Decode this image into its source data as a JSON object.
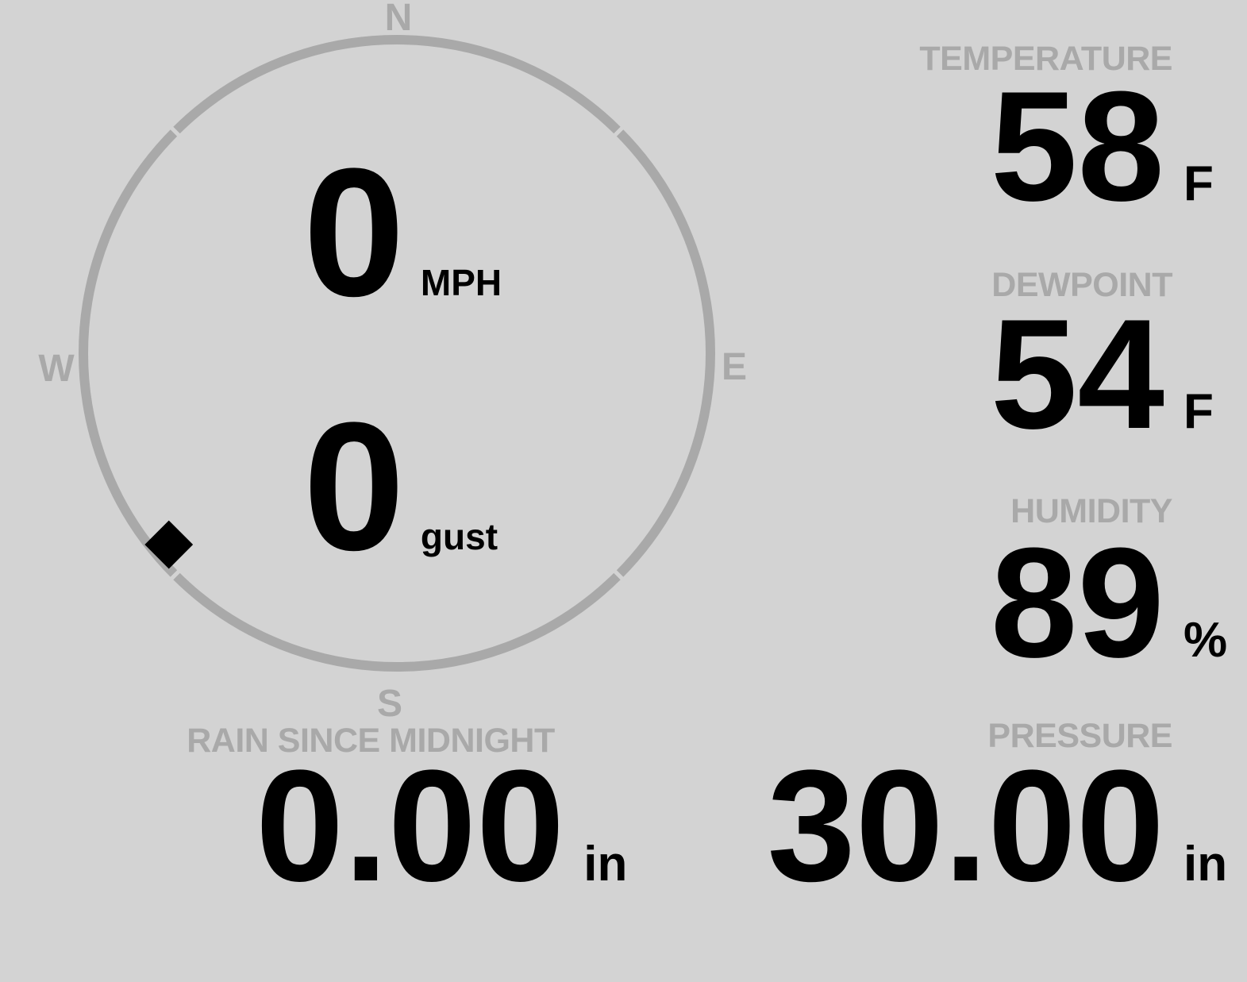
{
  "theme": {
    "background": "#d3d3d3",
    "muted_gray": "#a9a9a9",
    "value_black": "#000000"
  },
  "wind": {
    "speed": "0",
    "speed_unit": "MPH",
    "gust": "0",
    "gust_unit": "gust",
    "direction_deg": 230,
    "compass": {
      "north": "N",
      "east": "E",
      "south": "S",
      "west": "W"
    }
  },
  "metrics": {
    "temperature": {
      "label": "TEMPERATURE",
      "value": "58",
      "unit": "F"
    },
    "dewpoint": {
      "label": "DEWPOINT",
      "value": "54",
      "unit": "F"
    },
    "humidity": {
      "label": "HUMIDITY",
      "value": "89",
      "unit": "%"
    },
    "rain": {
      "label": "RAIN SINCE MIDNIGHT",
      "value": "0.00",
      "unit": "in"
    },
    "pressure": {
      "label": "PRESSURE",
      "value": "30.00",
      "unit": "in"
    }
  }
}
